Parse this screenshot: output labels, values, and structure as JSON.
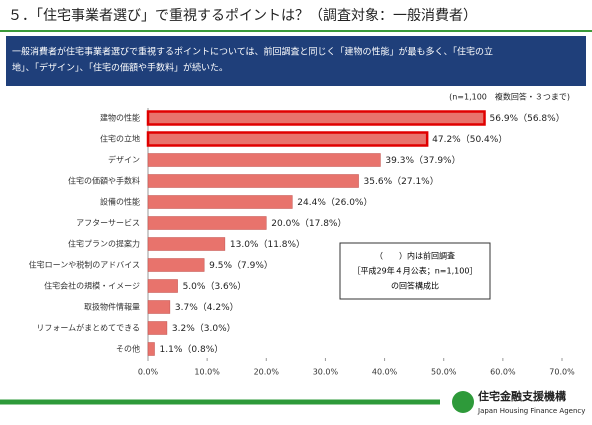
{
  "header": {
    "title": "５．「住宅事業者選び」で重視するポイントは？（調査対象：一般消費者）"
  },
  "summary": {
    "lines": [
      "一般消費者が住宅事業者選びで重視するポイントについては、前回調査と同じく「建物の性能」が最も多く、「住宅の立",
      "地」、「デザイン」、「住宅の価額や手数料」が続いた。"
    ]
  },
  "chart_data": {
    "type": "hbar",
    "note": "(n=1,100　複数回答・３つまで)",
    "categories": [
      "建物の性能",
      "住宅の立地",
      "デザイン",
      "住宅の価額や手数料",
      "設備の性能",
      "アフターサービス",
      "住宅プランの提案力",
      "住宅ローンや税制のアドバイス",
      "住宅会社の規模・イメージ",
      "取扱物件情報量",
      "リフォームがまとめてできる",
      "その他"
    ],
    "values": [
      56.9,
      47.2,
      39.3,
      35.6,
      24.4,
      20.0,
      13.0,
      9.5,
      5.0,
      3.7,
      3.2,
      1.1
    ],
    "value_labels": [
      "56.9%",
      "47.2%",
      "39.3%",
      "35.6%",
      "24.4%",
      "20.0%",
      "13.0%",
      "9.5%",
      "5.0%",
      "3.7%",
      "3.2%",
      "1.1%"
    ],
    "previous": {
      "values": [
        56.8,
        50.4,
        37.9,
        27.1,
        26.0,
        17.8,
        11.8,
        7.9,
        3.6,
        4.2,
        3.0,
        0.8
      ],
      "value_labels": [
        "（56.8%）",
        "（50.4%）",
        "（37.9%）",
        "（27.1%）",
        "（26.0%）",
        "（17.8%）",
        "（11.8%）",
        "（7.9%）",
        "（3.6%）",
        "（4.2%）",
        "（3.0%）",
        "（0.8%）"
      ]
    },
    "highlight": [
      true,
      true,
      false,
      false,
      false,
      false,
      false,
      false,
      false,
      false,
      false,
      false
    ],
    "color": "#e8736c",
    "highlight_color": "#e00000",
    "xlim": [
      0,
      70
    ],
    "xticks": [
      {
        "value": 0,
        "label": "0.0%"
      },
      {
        "value": 10,
        "label": "10.0%"
      },
      {
        "value": 20,
        "label": "20.0%"
      },
      {
        "value": 30,
        "label": "30.0%"
      },
      {
        "value": 40,
        "label": "40.0%"
      },
      {
        "value": 50,
        "label": "50.0%"
      },
      {
        "value": 60,
        "label": "60.0%"
      },
      {
        "value": 70,
        "label": "70.0%"
      }
    ],
    "legend_box": [
      "（　　）内は前回調査",
      "［平成29年４月公表；n=1,100］",
      "の回答構成比"
    ]
  },
  "footer": {
    "org": "住宅金融支援機構",
    "org_en": "Japan Housing Finance Agency"
  }
}
